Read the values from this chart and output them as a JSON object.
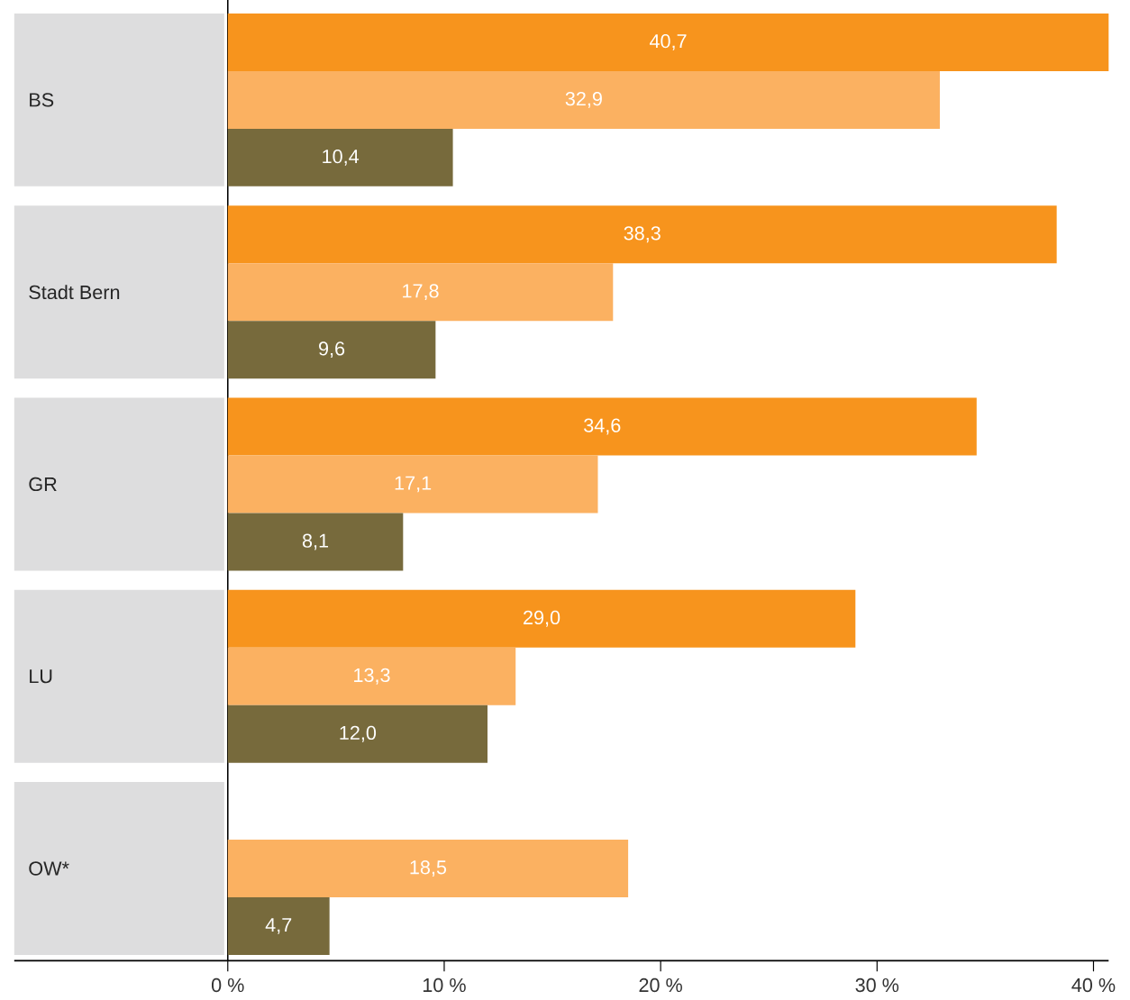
{
  "chart_data": {
    "type": "bar",
    "orientation": "horizontal",
    "categories": [
      "BS",
      "Stadt Bern",
      "GR",
      "LU",
      "OW*"
    ],
    "series": [
      {
        "color": "#f7941d",
        "values": [
          40.7,
          38.3,
          34.6,
          29.0,
          null
        ],
        "value_labels": [
          "40,7",
          "38,3",
          "34,6",
          "29,0",
          null
        ]
      },
      {
        "color": "#fbb161",
        "values": [
          32.9,
          17.8,
          17.1,
          13.3,
          18.5
        ],
        "value_labels": [
          "32,9",
          "17,8",
          "17,1",
          "13,3",
          "18,5"
        ]
      },
      {
        "color": "#776a3c",
        "values": [
          10.4,
          9.6,
          8.1,
          12.0,
          4.7
        ],
        "value_labels": [
          "10,4",
          "9,6",
          "8,1",
          "12,0",
          "4,7"
        ]
      }
    ],
    "xlim": [
      0,
      40.7
    ],
    "xticks": [
      {
        "value": 0,
        "label": "0 %"
      },
      {
        "value": 10,
        "label": "10 %"
      },
      {
        "value": 20,
        "label": "20 %"
      },
      {
        "value": 30,
        "label": "30 %"
      },
      {
        "value": 40,
        "label": "40 %"
      }
    ],
    "grid": false
  }
}
